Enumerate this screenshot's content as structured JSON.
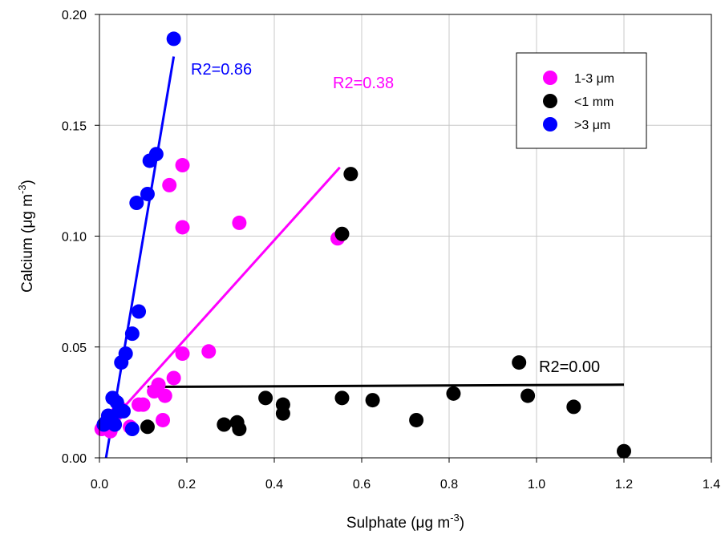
{
  "chart_data": {
    "type": "scatter",
    "title": "",
    "xlabel": {
      "pre": "Sulphate (",
      "mu": "μ",
      "unit": "g m",
      "sup": "-3",
      "post": ")"
    },
    "ylabel": {
      "pre": "Calcium (",
      "mu": "μ",
      "unit": "g m",
      "sup": "-3",
      "post": ")"
    },
    "xlim": [
      0,
      1.4
    ],
    "ylim": [
      0,
      0.2
    ],
    "xticks": [
      0.0,
      0.2,
      0.4,
      0.6,
      0.8,
      1.0,
      1.2,
      1.4
    ],
    "yticks": [
      0.0,
      0.05,
      0.1,
      0.15,
      0.2
    ],
    "xtick_labels": [
      "0.0",
      "0.2",
      "0.4",
      "0.6",
      "0.8",
      "1.0",
      "1.2",
      "1.4"
    ],
    "ytick_labels": [
      "0.00",
      "0.05",
      "0.10",
      "0.15",
      "0.20"
    ],
    "grid": true,
    "legend_position": "top-right",
    "series": [
      {
        "key": "fine",
        "name": "1-3 μm",
        "legend": {
          "pre": "1-3 ",
          "mu": "μ",
          "post": "m"
        },
        "color": "#ff00ff",
        "points": [
          [
            0.005,
            0.013
          ],
          [
            0.02,
            0.015
          ],
          [
            0.025,
            0.012
          ],
          [
            0.03,
            0.017
          ],
          [
            0.04,
            0.02
          ],
          [
            0.05,
            0.022
          ],
          [
            0.07,
            0.014
          ],
          [
            0.09,
            0.024
          ],
          [
            0.1,
            0.024
          ],
          [
            0.125,
            0.03
          ],
          [
            0.135,
            0.033
          ],
          [
            0.145,
            0.017
          ],
          [
            0.15,
            0.028
          ],
          [
            0.17,
            0.036
          ],
          [
            0.19,
            0.047
          ],
          [
            0.25,
            0.048
          ],
          [
            0.16,
            0.123
          ],
          [
            0.19,
            0.132
          ],
          [
            0.19,
            0.104
          ],
          [
            0.32,
            0.106
          ],
          [
            0.545,
            0.099
          ]
        ],
        "fit": {
          "x": [
            0.02,
            0.55
          ],
          "y": [
            0.015,
            0.131
          ],
          "r2_label": "R2=0.38"
        }
      },
      {
        "key": "coarse",
        "name": "<1 mm",
        "legend": {
          "pre": "<1 mm",
          "mu": "",
          "post": ""
        },
        "color": "#000000",
        "points": [
          [
            0.11,
            0.014
          ],
          [
            0.285,
            0.015
          ],
          [
            0.315,
            0.016
          ],
          [
            0.32,
            0.013
          ],
          [
            0.38,
            0.027
          ],
          [
            0.42,
            0.024
          ],
          [
            0.42,
            0.02
          ],
          [
            0.555,
            0.027
          ],
          [
            0.625,
            0.026
          ],
          [
            0.725,
            0.017
          ],
          [
            0.81,
            0.029
          ],
          [
            0.96,
            0.043
          ],
          [
            0.98,
            0.028
          ],
          [
            1.085,
            0.023
          ],
          [
            1.2,
            0.003
          ],
          [
            0.555,
            0.101
          ],
          [
            0.575,
            0.128
          ]
        ],
        "fit": {
          "x": [
            0.11,
            1.2
          ],
          "y": [
            0.032,
            0.033
          ],
          "r2_label": "R2=0.00"
        }
      },
      {
        "key": "large",
        "name": ">3 μm",
        "legend": {
          "pre": ">3 ",
          "mu": "μ",
          "post": "m"
        },
        "color": "#0000ff",
        "points": [
          [
            0.01,
            0.015
          ],
          [
            0.015,
            0.016
          ],
          [
            0.02,
            0.019
          ],
          [
            0.025,
            0.016
          ],
          [
            0.03,
            0.027
          ],
          [
            0.035,
            0.015
          ],
          [
            0.04,
            0.025
          ],
          [
            0.045,
            0.021
          ],
          [
            0.05,
            0.043
          ],
          [
            0.055,
            0.021
          ],
          [
            0.06,
            0.047
          ],
          [
            0.075,
            0.056
          ],
          [
            0.075,
            0.013
          ],
          [
            0.09,
            0.066
          ],
          [
            0.085,
            0.115
          ],
          [
            0.11,
            0.119
          ],
          [
            0.115,
            0.134
          ],
          [
            0.13,
            0.137
          ],
          [
            0.17,
            0.189
          ]
        ],
        "fit": {
          "x": [
            0.015,
            0.17
          ],
          "y": [
            0.0,
            0.181
          ],
          "r2_label": "R2=0.86"
        }
      }
    ]
  }
}
